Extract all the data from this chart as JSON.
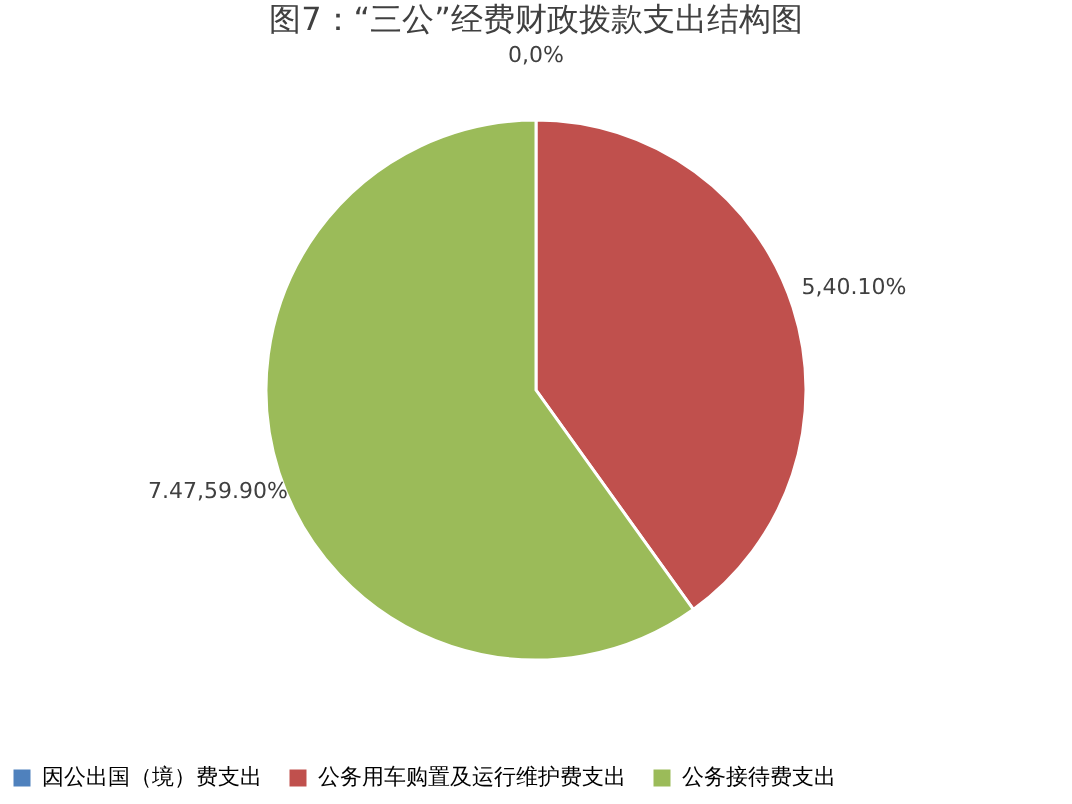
{
  "chart_data": {
    "type": "pie",
    "title": "图7：“三公”经费财政拨款支出结构图",
    "categories": [
      "因公出国（境）费支出",
      "公务用车购置及运行维护费支出",
      "公务接待费支出"
    ],
    "values": [
      0,
      40.1,
      59.9
    ],
    "value_labels": [
      "0,0%",
      "5,40.10%",
      "7.47,59.90%"
    ],
    "colors": [
      "#4f81bd",
      "#c0504d",
      "#9bbb59"
    ],
    "legend": "bottom"
  }
}
